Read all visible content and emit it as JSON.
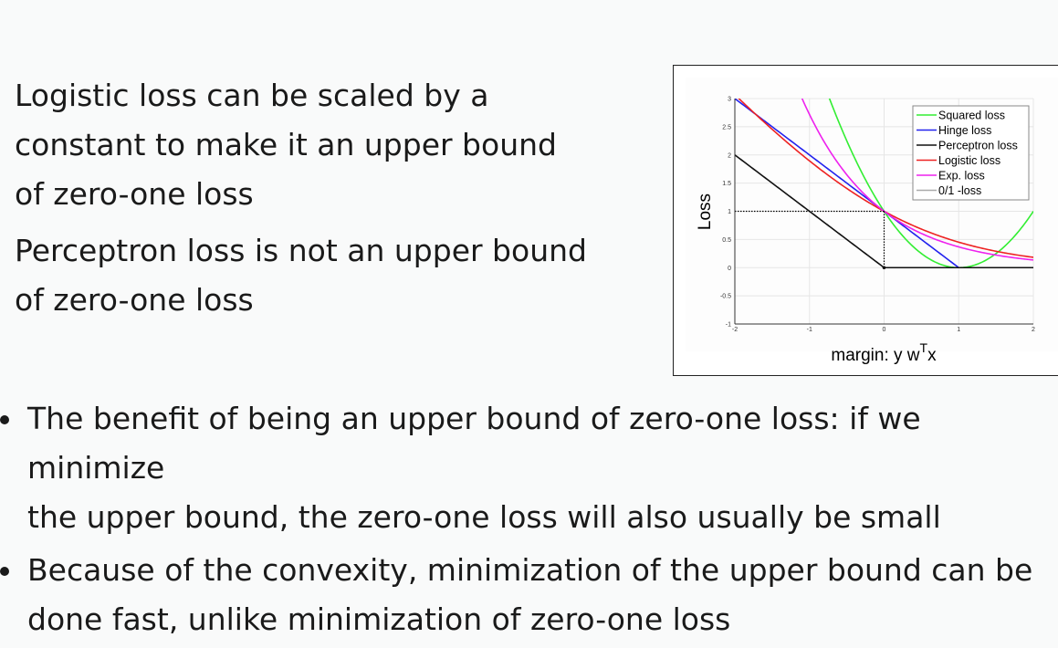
{
  "left_notes": [
    {
      "lines": [
        "Logistic loss can be scaled by a",
        "constant to make it an upper bound",
        "of zero-one loss"
      ]
    },
    {
      "lines": [
        "Perceptron loss is not an upper bound",
        "of zero-one loss"
      ]
    }
  ],
  "bullets": [
    {
      "lines": [
        "The benefit of being an upper bound of zero-one loss: if we minimize",
        "the upper bound, the zero-one loss will also usually be small"
      ]
    },
    {
      "lines": [
        "Because of the convexity, minimization of the upper bound can be",
        "done fast, unlike minimization of zero-one loss"
      ]
    }
  ],
  "chart_data": {
    "type": "line",
    "title": "",
    "xlabel": "margin: y w",
    "xlabel_sup": "T",
    "xlabel_suffix": "x",
    "ylabel": "Loss",
    "xlim": [
      -2,
      2
    ],
    "ylim": [
      -1,
      3
    ],
    "x_ticks": [
      -2,
      -1,
      0,
      1,
      2
    ],
    "x_tick_labels": [
      "-2",
      "-1",
      "0",
      "1",
      "2"
    ],
    "y_ticks": [
      -1,
      -0.5,
      0,
      0.5,
      1,
      1.5,
      2,
      2.5,
      3
    ],
    "y_tick_labels": [
      "-1",
      "-0.5",
      "0",
      "0.5",
      "1",
      "1.5",
      "2",
      "2.5",
      "3"
    ],
    "grid": true,
    "legend_position": "top-right",
    "series": [
      {
        "name": "Squared loss",
        "color": "#33ee33",
        "formula": "(1-m)^2"
      },
      {
        "name": "Hinge loss",
        "color": "#2222ee",
        "formula": "max(0,1-m)"
      },
      {
        "name": "Perceptron loss",
        "color": "#111111",
        "formula": "max(0,-m)"
      },
      {
        "name": "Logistic loss",
        "color": "#ee2222",
        "formula": "log2(1+exp(-m))"
      },
      {
        "name": "Exp. loss",
        "color": "#ee22ee",
        "formula": "exp(-m)"
      },
      {
        "name": "0/1 -loss",
        "color": "#aaaaaa",
        "formula": "step"
      }
    ]
  }
}
